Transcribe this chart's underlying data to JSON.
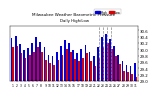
{
  "title": "Milwaukee Weather Barometric Pressure",
  "subtitle": "Daily High/Low",
  "high_color": "#0000dd",
  "low_color": "#dd0000",
  "background_color": "#ffffff",
  "ylim": [
    29.0,
    30.75
  ],
  "ytick_vals": [
    29.0,
    29.2,
    29.4,
    29.6,
    29.8,
    30.0,
    30.2,
    30.4,
    30.6
  ],
  "ytick_labels": [
    "29.0",
    "29.2",
    "29.4",
    "29.6",
    "29.8",
    "30.0",
    "30.2",
    "30.4",
    "30.6"
  ],
  "days": [
    1,
    2,
    3,
    4,
    5,
    6,
    7,
    8,
    9,
    10,
    11,
    12,
    13,
    14,
    15,
    16,
    17,
    18,
    19,
    20,
    21,
    22,
    23,
    24,
    25,
    26,
    27,
    28,
    29,
    30,
    31
  ],
  "highs": [
    30.35,
    30.42,
    30.18,
    29.97,
    30.05,
    30.2,
    30.38,
    30.22,
    30.08,
    29.82,
    29.78,
    29.92,
    30.12,
    30.28,
    30.2,
    29.98,
    29.88,
    30.02,
    30.15,
    29.92,
    29.78,
    30.08,
    30.38,
    30.48,
    30.32,
    30.12,
    29.82,
    29.62,
    29.52,
    29.48,
    29.58
  ],
  "lows": [
    30.08,
    30.12,
    29.88,
    29.72,
    29.82,
    29.92,
    30.08,
    29.92,
    29.68,
    29.58,
    29.52,
    29.68,
    29.82,
    30.02,
    29.92,
    29.7,
    29.62,
    29.74,
    29.88,
    29.62,
    29.48,
    29.74,
    30.08,
    30.2,
    30.02,
    29.78,
    29.55,
    29.32,
    29.28,
    29.22,
    29.12
  ],
  "dashed_days": [
    22,
    23,
    24,
    25
  ],
  "legend_labels": [
    "High",
    "Low"
  ],
  "bar_width": 0.42
}
